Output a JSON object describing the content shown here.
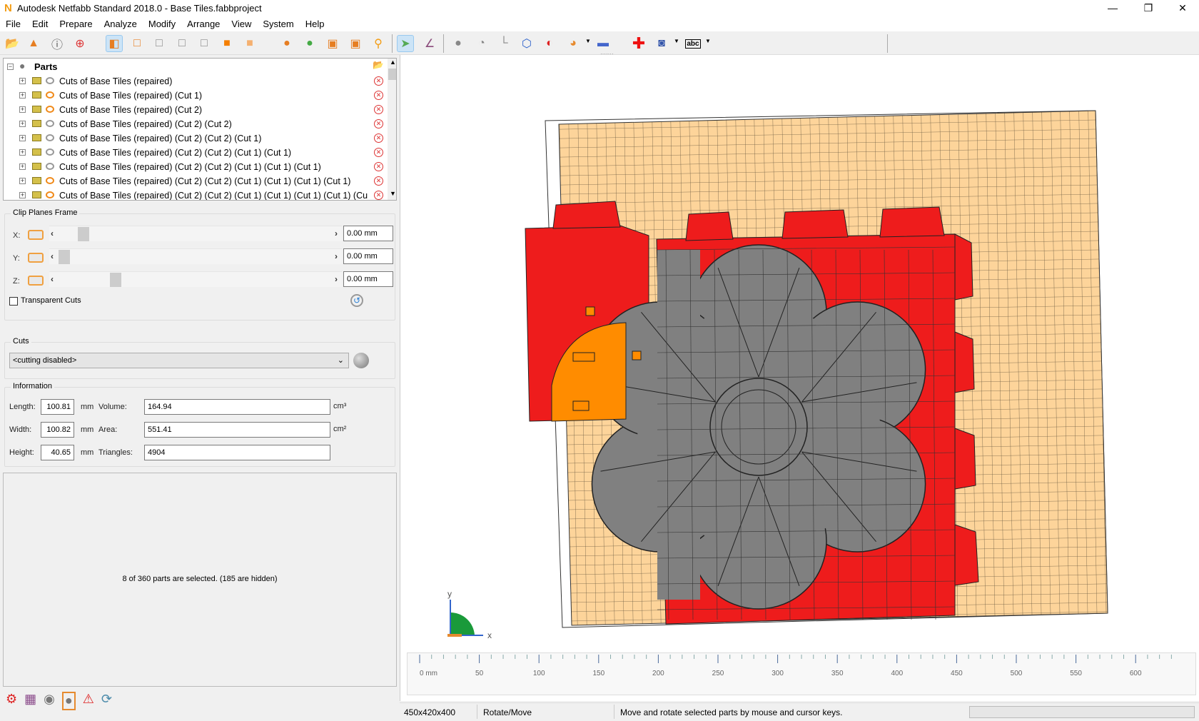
{
  "window": {
    "title": "Autodesk Netfabb Standard 2018.0 - Base Tiles.fabbproject",
    "logo": "N",
    "controls": [
      "minimize",
      "restore",
      "close"
    ]
  },
  "menu": [
    "File",
    "Edit",
    "Prepare",
    "Analyze",
    "Modify",
    "Arrange",
    "View",
    "System",
    "Help"
  ],
  "toolbar": {
    "icons": [
      "open-folder-icon",
      "add-shapes-icon",
      "part-info-icon",
      "add-part-icon",
      "view-default-icon",
      "view-front-icon",
      "view-back-icon",
      "view-left-icon",
      "view-right-icon",
      "view-top-icon",
      "view-bottom-icon",
      "select-parts-icon",
      "select-all-icon",
      "box-icon",
      "box-parts-icon",
      "zoom-icon",
      "pointer-icon",
      "measure-plane-icon",
      "move-icon",
      "rotate-icon",
      "align-icon",
      "bounding-icon",
      "boolean-icon",
      "shading-icon",
      "ruler-icon",
      "repair-icon",
      "shadow-icon",
      "label-abc-icon"
    ],
    "abc_label": "abc"
  },
  "tree": {
    "root": "Parts",
    "items": [
      {
        "label": "Cuts of Base Tiles (repaired)",
        "visible": false
      },
      {
        "label": "Cuts of Base Tiles (repaired) (Cut 1)",
        "visible": true
      },
      {
        "label": "Cuts of Base Tiles (repaired) (Cut 2)",
        "visible": true
      },
      {
        "label": "Cuts of Base Tiles (repaired) (Cut 2) (Cut 2)",
        "visible": false
      },
      {
        "label": "Cuts of Base Tiles (repaired) (Cut 2) (Cut 2) (Cut 1)",
        "visible": false
      },
      {
        "label": "Cuts of Base Tiles (repaired) (Cut 2) (Cut 2) (Cut 1) (Cut 1)",
        "visible": false
      },
      {
        "label": "Cuts of Base Tiles (repaired) (Cut 2) (Cut 2) (Cut 1) (Cut 1) (Cut 1)",
        "visible": false
      },
      {
        "label": "Cuts of Base Tiles (repaired) (Cut 2) (Cut 2) (Cut 1) (Cut 1) (Cut 1) (Cut 1)",
        "visible": true
      },
      {
        "label": "Cuts of Base Tiles (repaired) (Cut 2) (Cut 2) (Cut 1) (Cut 1) (Cut 1) (Cut 1) (Cu",
        "visible": true
      }
    ]
  },
  "clip": {
    "title": "Clip Planes Frame",
    "x_label": "X:",
    "y_label": "Y:",
    "z_label": "Z:",
    "x_value": "0.00 mm",
    "y_value": "0.00 mm",
    "z_value": "0.00 mm",
    "transparent_label": "Transparent Cuts",
    "transparent_checked": false
  },
  "cuts": {
    "title": "Cuts",
    "selected": "<cutting disabled>"
  },
  "info": {
    "title": "Information",
    "length_label": "Length:",
    "length": "100.81",
    "width_label": "Width:",
    "width": "100.82",
    "height_label": "Height:",
    "height": "40.65",
    "unit_mm": "mm",
    "volume_label": "Volume:",
    "volume": "164.94",
    "volume_unit": "cm³",
    "area_label": "Area:",
    "area": "551.41",
    "area_unit": "cm²",
    "triangles_label": "Triangles:",
    "triangles": "4904"
  },
  "selection_message": "8 of 360 parts are selected. (185 are hidden)",
  "viewport": {
    "axis_x": "x",
    "axis_y": "y",
    "colors": {
      "plate": "#fdd49a",
      "selected": "#ff8c00",
      "parts": "#ee1c1c",
      "flower": "#808080"
    }
  },
  "ruler": {
    "labels": [
      "0 mm",
      "50",
      "100",
      "150",
      "200",
      "250",
      "300",
      "350",
      "400",
      "450",
      "500",
      "550",
      "600"
    ]
  },
  "status": {
    "platform": "450x420x400",
    "mode": "Rotate/Move",
    "hint": "Move and rotate selected parts by mouse and cursor keys."
  }
}
